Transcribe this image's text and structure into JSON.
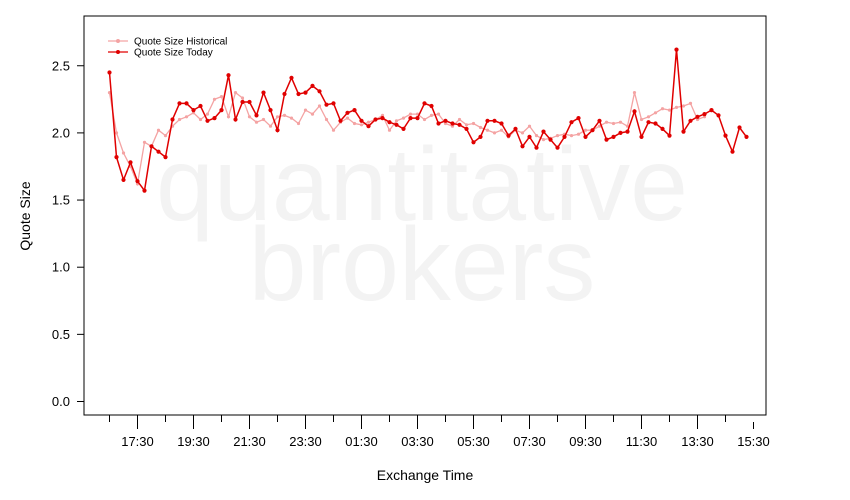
{
  "chart_data": {
    "type": "line",
    "watermark": [
      "quantitative",
      "brokers"
    ],
    "xlabel": "Exchange Time",
    "ylabel": "Quote Size",
    "ylim": [
      -0.1,
      2.9
    ],
    "yticks": [
      0.0,
      0.5,
      1.0,
      1.5,
      2.0,
      2.5
    ],
    "ytick_labels": [
      "0.0",
      "0.5",
      "1.0",
      "1.5",
      "2.0",
      "2.5"
    ],
    "x_start": "16:30",
    "x_step_minutes": 15,
    "xtick_labels": [
      "17:30",
      "19:30",
      "21:30",
      "23:30",
      "01:30",
      "03:30",
      "05:30",
      "07:30",
      "09:30",
      "11:30",
      "13:30",
      "15:30"
    ],
    "xtick_indices": [
      4,
      12,
      20,
      28,
      36,
      44,
      52,
      60,
      68,
      76,
      84,
      92
    ],
    "legend": {
      "position": "top-left"
    },
    "series": [
      {
        "name": "Quote Size Historical",
        "color": "#f4a3a3",
        "values": [
          2.3,
          2.0,
          1.85,
          1.75,
          1.62,
          1.93,
          1.9,
          2.02,
          1.98,
          2.05,
          2.1,
          2.12,
          2.15,
          2.1,
          2.14,
          2.25,
          2.27,
          2.12,
          2.3,
          2.26,
          2.12,
          2.08,
          2.1,
          2.05,
          2.12,
          2.13,
          2.11,
          2.07,
          2.17,
          2.14,
          2.2,
          2.1,
          2.02,
          2.08,
          2.11,
          2.07,
          2.06,
          2.08,
          2.1,
          2.13,
          2.02,
          2.09,
          2.11,
          2.14,
          2.14,
          2.1,
          2.13,
          2.14,
          2.07,
          2.05,
          2.1,
          2.06,
          2.07,
          2.04,
          2.02,
          2.0,
          2.02,
          1.97,
          2.02,
          2.0,
          2.05,
          1.98,
          1.95,
          1.96,
          1.98,
          1.99,
          1.98,
          1.99,
          2.02,
          2.02,
          2.05,
          2.08,
          2.07,
          2.08,
          2.05,
          2.3,
          2.1,
          2.12,
          2.15,
          2.18,
          2.17,
          2.19,
          2.2,
          2.22,
          2.1,
          2.12
        ]
      },
      {
        "name": "Quote Size Today",
        "color": "#e00000",
        "values": [
          2.45,
          1.82,
          1.65,
          1.78,
          1.64,
          1.57,
          1.9,
          1.86,
          1.82,
          2.1,
          2.22,
          2.22,
          2.17,
          2.2,
          2.09,
          2.11,
          2.17,
          2.43,
          2.1,
          2.23,
          2.23,
          2.13,
          2.3,
          2.17,
          2.02,
          2.29,
          2.41,
          2.29,
          2.3,
          2.35,
          2.31,
          2.21,
          2.22,
          2.09,
          2.15,
          2.17,
          2.09,
          2.05,
          2.1,
          2.11,
          2.08,
          2.06,
          2.03,
          2.11,
          2.11,
          2.22,
          2.2,
          2.07,
          2.09,
          2.07,
          2.06,
          2.03,
          1.93,
          1.97,
          2.09,
          2.09,
          2.07,
          1.98,
          2.03,
          1.9,
          1.97,
          1.89,
          2.01,
          1.95,
          1.89,
          1.97,
          2.08,
          2.11,
          1.97,
          2.02,
          2.09,
          1.95,
          1.97,
          2.0,
          2.01,
          2.16,
          1.97,
          2.08,
          2.07,
          2.03,
          1.98,
          2.62,
          2.01,
          2.09,
          2.12,
          2.14,
          2.17,
          2.13,
          1.98,
          1.86,
          2.04,
          1.97
        ]
      }
    ]
  }
}
